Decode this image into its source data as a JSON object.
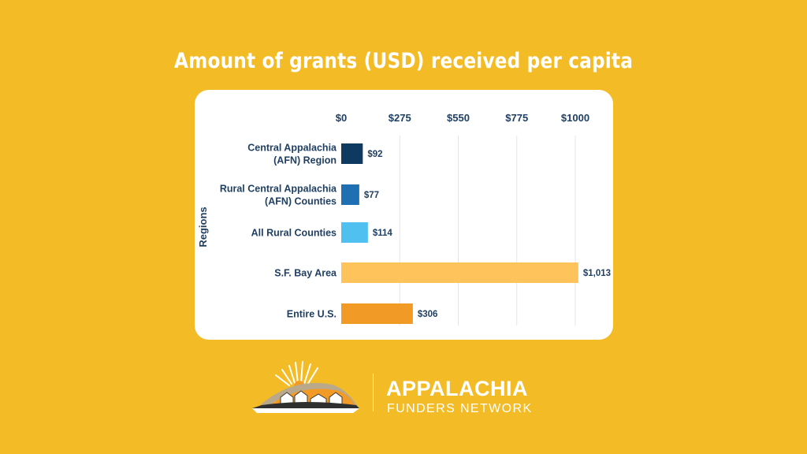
{
  "chart_data": {
    "type": "bar",
    "orientation": "horizontal",
    "title": "Amount of grants (USD) received per capita",
    "ylabel": "Regions",
    "xlim": [
      0,
      1000
    ],
    "x_ticks": [
      "$0",
      "$275",
      "$550",
      "$775",
      "$1000"
    ],
    "grid": true,
    "categories": [
      [
        "Central Appalachia",
        "(AFN) Region"
      ],
      [
        "Rural Central Appalachia",
        "(AFN) Counties"
      ],
      [
        "All Rural Counties"
      ],
      [
        "S.F. Bay Area"
      ],
      [
        "Entire U.S."
      ]
    ],
    "values": [
      92,
      77,
      114,
      1013,
      306
    ],
    "value_labels": [
      "$92",
      "$77",
      "$114",
      "$1,013",
      "$306"
    ],
    "colors": [
      "#0e3a62",
      "#1f6fb3",
      "#4fc0f0",
      "#ffc35c",
      "#f29a26"
    ]
  },
  "logo": {
    "name_line1": "APPALACHIA",
    "name_line2": "FUNDERS NETWORK"
  },
  "colors": {
    "background": "#f3bb25",
    "text_dark": "#1f3f63"
  }
}
